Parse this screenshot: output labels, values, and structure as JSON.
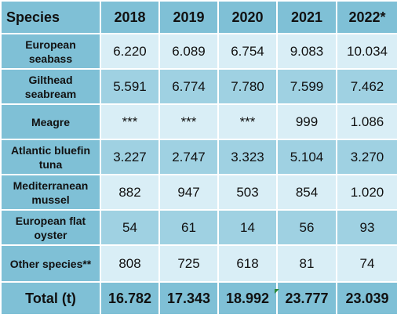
{
  "table": {
    "headers": [
      "Species",
      "2018",
      "2019",
      "2020",
      "2021",
      "2022*"
    ],
    "rows": [
      {
        "species_line1": "European",
        "species_line2": "seabass",
        "values": [
          "6.220",
          "6.089",
          "6.754",
          "9.083",
          "10.034"
        ]
      },
      {
        "species_line1": "Gilthead",
        "species_line2": "seabream",
        "values": [
          "5.591",
          "6.774",
          "7.780",
          "7.599",
          "7.462"
        ]
      },
      {
        "species_line1": "Meagre",
        "species_line2": "",
        "values": [
          "***",
          "***",
          "***",
          "999",
          "1.086"
        ]
      },
      {
        "species_line1": "Atlantic bluefin",
        "species_line2": "tuna",
        "values": [
          "3.227",
          "2.747",
          "3.323",
          "5.104",
          "3.270"
        ]
      },
      {
        "species_line1": "Mediterranean",
        "species_line2": "mussel",
        "values": [
          "882",
          "947",
          "503",
          "854",
          "1.020"
        ]
      },
      {
        "species_line1": "European flat",
        "species_line2": "oyster",
        "values": [
          "54",
          "61",
          "14",
          "56",
          "93"
        ]
      },
      {
        "species_line1": "Other species**",
        "species_line2": "",
        "values": [
          "808",
          "725",
          "618",
          "81",
          "74"
        ]
      }
    ],
    "total": {
      "label": "Total (t)",
      "values": [
        "16.782",
        "17.343",
        "18.992",
        "23.777",
        "23.039"
      ]
    }
  }
}
